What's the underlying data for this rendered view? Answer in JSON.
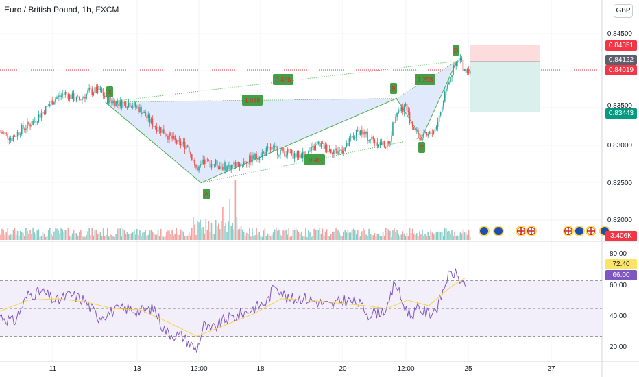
{
  "header": {
    "title": "Euro / British Pound, 1h, FXCM",
    "currency_button": "GBP"
  },
  "price_tags": {
    "target": "0.84351",
    "current_gray": "0.84122",
    "current_red": "0.84019",
    "stop": "0.83443",
    "volume": "3.406K",
    "rsi_ma": "72.40",
    "rsi": "66.00"
  },
  "colors": {
    "up": "#26a69a",
    "down": "#ef5350",
    "pattern_fill": "#dce6fb",
    "pattern_line": "#4caf50",
    "label_box": "#43a047",
    "rsi_line": "#7e57c2",
    "rsi_ma": "#f7d34a",
    "rsi_band": "#f3effa",
    "stop_zone": "#fcdcdc",
    "target_zone": "#d9f0ec",
    "axis_text": "#131722"
  },
  "chart_data": [
    {
      "type": "candlestick",
      "title": "Euro / British Pound, 1h, FXCM",
      "y_ticks": [
        "0.84500",
        "0.83500",
        "0.83000",
        "0.82500",
        "0.82000"
      ],
      "ylim": [
        0.8175,
        0.8465
      ],
      "x_ticks": [
        "11",
        "13",
        "12:00",
        "18",
        "20",
        "12:00",
        "25",
        "27"
      ],
      "close_path": [
        [
          0,
          0.8318
        ],
        [
          8,
          0.831
        ],
        [
          15,
          0.8322
        ],
        [
          22,
          0.833
        ],
        [
          30,
          0.8345
        ],
        [
          38,
          0.8362
        ],
        [
          46,
          0.837
        ],
        [
          55,
          0.836
        ],
        [
          63,
          0.8372
        ],
        [
          70,
          0.8374
        ],
        [
          76,
          0.8362
        ],
        [
          85,
          0.8356
        ],
        [
          92,
          0.8357
        ],
        [
          100,
          0.8347
        ],
        [
          106,
          0.8333
        ],
        [
          110,
          0.8326
        ],
        [
          115,
          0.832
        ],
        [
          120,
          0.8312
        ],
        [
          126,
          0.8302
        ],
        [
          133,
          0.83
        ],
        [
          140,
          0.8265
        ],
        [
          145,
          0.8278
        ],
        [
          152,
          0.8275
        ],
        [
          160,
          0.8271
        ],
        [
          168,
          0.8275
        ],
        [
          176,
          0.828
        ],
        [
          185,
          0.8288
        ],
        [
          192,
          0.8295
        ],
        [
          200,
          0.8292
        ],
        [
          210,
          0.8287
        ],
        [
          218,
          0.8288
        ],
        [
          226,
          0.8302
        ],
        [
          233,
          0.8295
        ],
        [
          240,
          0.8292
        ],
        [
          246,
          0.8298
        ],
        [
          250,
          0.831
        ],
        [
          255,
          0.832
        ],
        [
          262,
          0.831
        ],
        [
          270,
          0.8303
        ],
        [
          276,
          0.83
        ],
        [
          281,
          0.8345
        ],
        [
          288,
          0.8353
        ],
        [
          292,
          0.833
        ],
        [
          298,
          0.831
        ],
        [
          303,
          0.8312
        ],
        [
          309,
          0.8322
        ],
        [
          313,
          0.8345
        ],
        [
          317,
          0.838
        ],
        [
          322,
          0.8402
        ],
        [
          327,
          0.8415
        ],
        [
          330,
          0.8402
        ]
      ],
      "harmonic_pattern": {
        "points": [
          {
            "label": "X",
            "bar": 75,
            "price": 0.8358
          },
          {
            "label": "A",
            "bar": 143,
            "price": 0.825
          },
          {
            "label": "B",
            "bar": 282,
            "price": 0.8363
          },
          {
            "label": "C",
            "bar": 300,
            "price": 0.831
          },
          {
            "label": "D",
            "bar": 325,
            "price": 0.8413
          }
        ],
        "ratio_labels": [
          {
            "text": "1.038",
            "bar": 178,
            "price": 0.8361
          },
          {
            "text": "0.466",
            "bar": 198,
            "price": 0.8384
          },
          {
            "text": "0.46",
            "bar": 222,
            "price": 0.828
          },
          {
            "text": "1.298",
            "bar": 300,
            "price": 0.8386
          }
        ]
      },
      "position": {
        "entry": 0.84122,
        "target": 0.84351,
        "stop": 0.83443,
        "current": 0.84019
      }
    },
    {
      "type": "bar",
      "title": "Volume",
      "last_value": "3.406K"
    },
    {
      "type": "line",
      "title": "RSI",
      "y_ticks": [
        "80.00",
        "60.00",
        "40.00",
        "20.00"
      ],
      "ylim": [
        15,
        90
      ],
      "bands": [
        30,
        50,
        70
      ],
      "rsi_last": 66.0,
      "rsi_ma_last": 72.4,
      "rsi_path": [
        [
          0,
          45
        ],
        [
          10,
          40
        ],
        [
          20,
          60
        ],
        [
          30,
          62
        ],
        [
          40,
          55
        ],
        [
          50,
          60
        ],
        [
          60,
          56
        ],
        [
          70,
          44
        ],
        [
          80,
          48
        ],
        [
          90,
          50
        ],
        [
          100,
          48
        ],
        [
          110,
          50
        ],
        [
          115,
          38
        ],
        [
          120,
          32
        ],
        [
          130,
          30
        ],
        [
          140,
          20
        ],
        [
          145,
          38
        ],
        [
          150,
          34
        ],
        [
          160,
          42
        ],
        [
          170,
          45
        ],
        [
          180,
          50
        ],
        [
          190,
          55
        ],
        [
          196,
          68
        ],
        [
          205,
          56
        ],
        [
          215,
          58
        ],
        [
          225,
          55
        ],
        [
          235,
          52
        ],
        [
          245,
          56
        ],
        [
          255,
          54
        ],
        [
          262,
          46
        ],
        [
          270,
          48
        ],
        [
          276,
          50
        ],
        [
          281,
          70
        ],
        [
          286,
          55
        ],
        [
          292,
          45
        ],
        [
          298,
          50
        ],
        [
          305,
          46
        ],
        [
          312,
          52
        ],
        [
          318,
          72
        ],
        [
          323,
          76
        ],
        [
          328,
          70
        ],
        [
          331,
          66
        ]
      ],
      "rsi_ma_path": [
        [
          0,
          48
        ],
        [
          20,
          56
        ],
        [
          40,
          57
        ],
        [
          60,
          55
        ],
        [
          80,
          50
        ],
        [
          100,
          49
        ],
        [
          120,
          40
        ],
        [
          140,
          30
        ],
        [
          160,
          38
        ],
        [
          180,
          46
        ],
        [
          200,
          57
        ],
        [
          220,
          56
        ],
        [
          240,
          54
        ],
        [
          260,
          52
        ],
        [
          275,
          50
        ],
        [
          290,
          56
        ],
        [
          305,
          52
        ],
        [
          320,
          65
        ],
        [
          331,
          72
        ]
      ]
    }
  ]
}
